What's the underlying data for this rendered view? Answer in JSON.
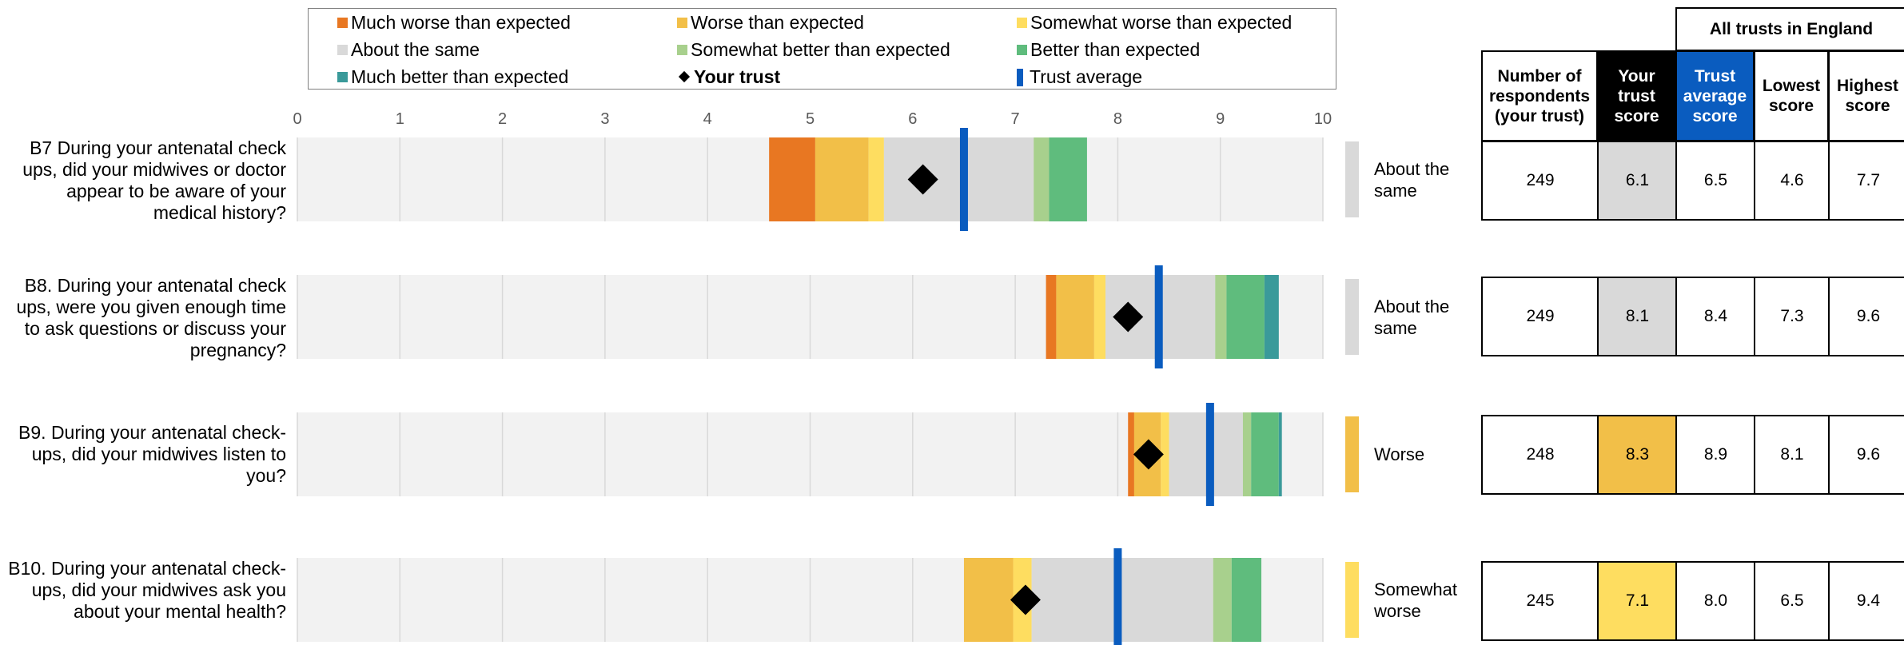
{
  "legend": {
    "items": [
      {
        "label": "Much worse than expected",
        "color": "#e87722",
        "kind": "swatch"
      },
      {
        "label": "Worse than expected",
        "color": "#f2bf48",
        "kind": "swatch"
      },
      {
        "label": "Somewhat worse than expected",
        "color": "#fedd60",
        "kind": "swatch"
      },
      {
        "label": "About the same",
        "color": "#d9d9d9",
        "kind": "swatch"
      },
      {
        "label": "Somewhat better than expected",
        "color": "#a8d08d",
        "kind": "swatch"
      },
      {
        "label": "Better than expected",
        "color": "#5fbc7d",
        "kind": "swatch"
      },
      {
        "label": "Much better than expected",
        "color": "#3a9a9a",
        "kind": "swatch"
      },
      {
        "label": "Your trust",
        "color": "#000000",
        "kind": "diamond"
      },
      {
        "label": "Trust average",
        "color": "#0a5cbf",
        "kind": "bar"
      }
    ]
  },
  "table": {
    "group_header": "All trusts in England",
    "headers": [
      "Number of respondents (your trust)",
      "Your trust score",
      "Trust average score",
      "Lowest score",
      "Highest score"
    ]
  },
  "chart_data": {
    "type": "bar",
    "x_axis": {
      "min": 0,
      "max": 10,
      "ticks": [
        "0",
        "1",
        "2",
        "3",
        "4",
        "5",
        "6",
        "7",
        "8",
        "9",
        "10"
      ]
    },
    "colors": {
      "background": "#f2f2f2",
      "grid": "#d9d9d9",
      "trust_average": "#0a5cbf",
      "your_trust": "#000000",
      "header_black": "#000000",
      "header_blue": "#0a5cbf"
    },
    "questions": [
      {
        "label": "B7  During your antenatal check ups, did your midwives or doctor appear to be aware of your medical history?",
        "bands": [
          {
            "from": 4.6,
            "to": 5.05,
            "color": "#e87722"
          },
          {
            "from": 5.05,
            "to": 5.57,
            "color": "#f2bf48"
          },
          {
            "from": 5.57,
            "to": 5.72,
            "color": "#fedd60"
          },
          {
            "from": 5.72,
            "to": 7.18,
            "color": "#d9d9d9"
          },
          {
            "from": 7.18,
            "to": 7.33,
            "color": "#a8d08d"
          },
          {
            "from": 7.33,
            "to": 7.7,
            "color": "#5fbc7d"
          }
        ],
        "your_trust": 6.1,
        "trust_average": 6.5,
        "rating": "About the same",
        "rating_color": "#d9d9d9",
        "respondents": "249",
        "trust_score": "6.1",
        "average": "6.5",
        "lowest": "4.6",
        "highest": "7.7"
      },
      {
        "label": "B8. During your antenatal check ups, were you given enough time to ask questions or discuss your pregnancy?",
        "bands": [
          {
            "from": 7.3,
            "to": 7.4,
            "color": "#e87722"
          },
          {
            "from": 7.4,
            "to": 7.77,
            "color": "#f2bf48"
          },
          {
            "from": 7.77,
            "to": 7.88,
            "color": "#fedd60"
          },
          {
            "from": 7.88,
            "to": 8.95,
            "color": "#d9d9d9"
          },
          {
            "from": 8.95,
            "to": 9.06,
            "color": "#a8d08d"
          },
          {
            "from": 9.06,
            "to": 9.43,
            "color": "#5fbc7d"
          },
          {
            "from": 9.43,
            "to": 9.57,
            "color": "#3a9a9a"
          }
        ],
        "your_trust": 8.1,
        "trust_average": 8.4,
        "rating": "About the same",
        "rating_color": "#d9d9d9",
        "respondents": "249",
        "trust_score": "8.1",
        "average": "8.4",
        "lowest": "7.3",
        "highest": "9.6"
      },
      {
        "label": "B9. During your antenatal check-ups, did your midwives listen to you?",
        "bands": [
          {
            "from": 8.1,
            "to": 8.16,
            "color": "#e87722"
          },
          {
            "from": 8.16,
            "to": 8.42,
            "color": "#f2bf48"
          },
          {
            "from": 8.42,
            "to": 8.5,
            "color": "#fedd60"
          },
          {
            "from": 8.5,
            "to": 9.22,
            "color": "#d9d9d9"
          },
          {
            "from": 9.22,
            "to": 9.3,
            "color": "#a8d08d"
          },
          {
            "from": 9.3,
            "to": 9.57,
            "color": "#5fbc7d"
          },
          {
            "from": 9.57,
            "to": 9.6,
            "color": "#3a9a9a"
          }
        ],
        "your_trust": 8.3,
        "trust_average": 8.9,
        "rating": "Worse",
        "rating_color": "#f2bf48",
        "respondents": "248",
        "trust_score": "8.3",
        "average": "8.9",
        "lowest": "8.1",
        "highest": "9.6"
      },
      {
        "label": "B10. During your antenatal check-ups, did your midwives ask you about your mental health?",
        "bands": [
          {
            "from": 6.5,
            "to": 6.98,
            "color": "#f2bf48"
          },
          {
            "from": 6.98,
            "to": 7.16,
            "color": "#fedd60"
          },
          {
            "from": 7.16,
            "to": 8.93,
            "color": "#d9d9d9"
          },
          {
            "from": 8.93,
            "to": 9.11,
            "color": "#a8d08d"
          },
          {
            "from": 9.11,
            "to": 9.4,
            "color": "#5fbc7d"
          }
        ],
        "your_trust": 7.1,
        "trust_average": 8.0,
        "rating": "Somewhat worse",
        "rating_color": "#fedd60",
        "respondents": "245",
        "trust_score": "7.1",
        "average": "8.0",
        "lowest": "6.5",
        "highest": "9.4"
      }
    ]
  }
}
